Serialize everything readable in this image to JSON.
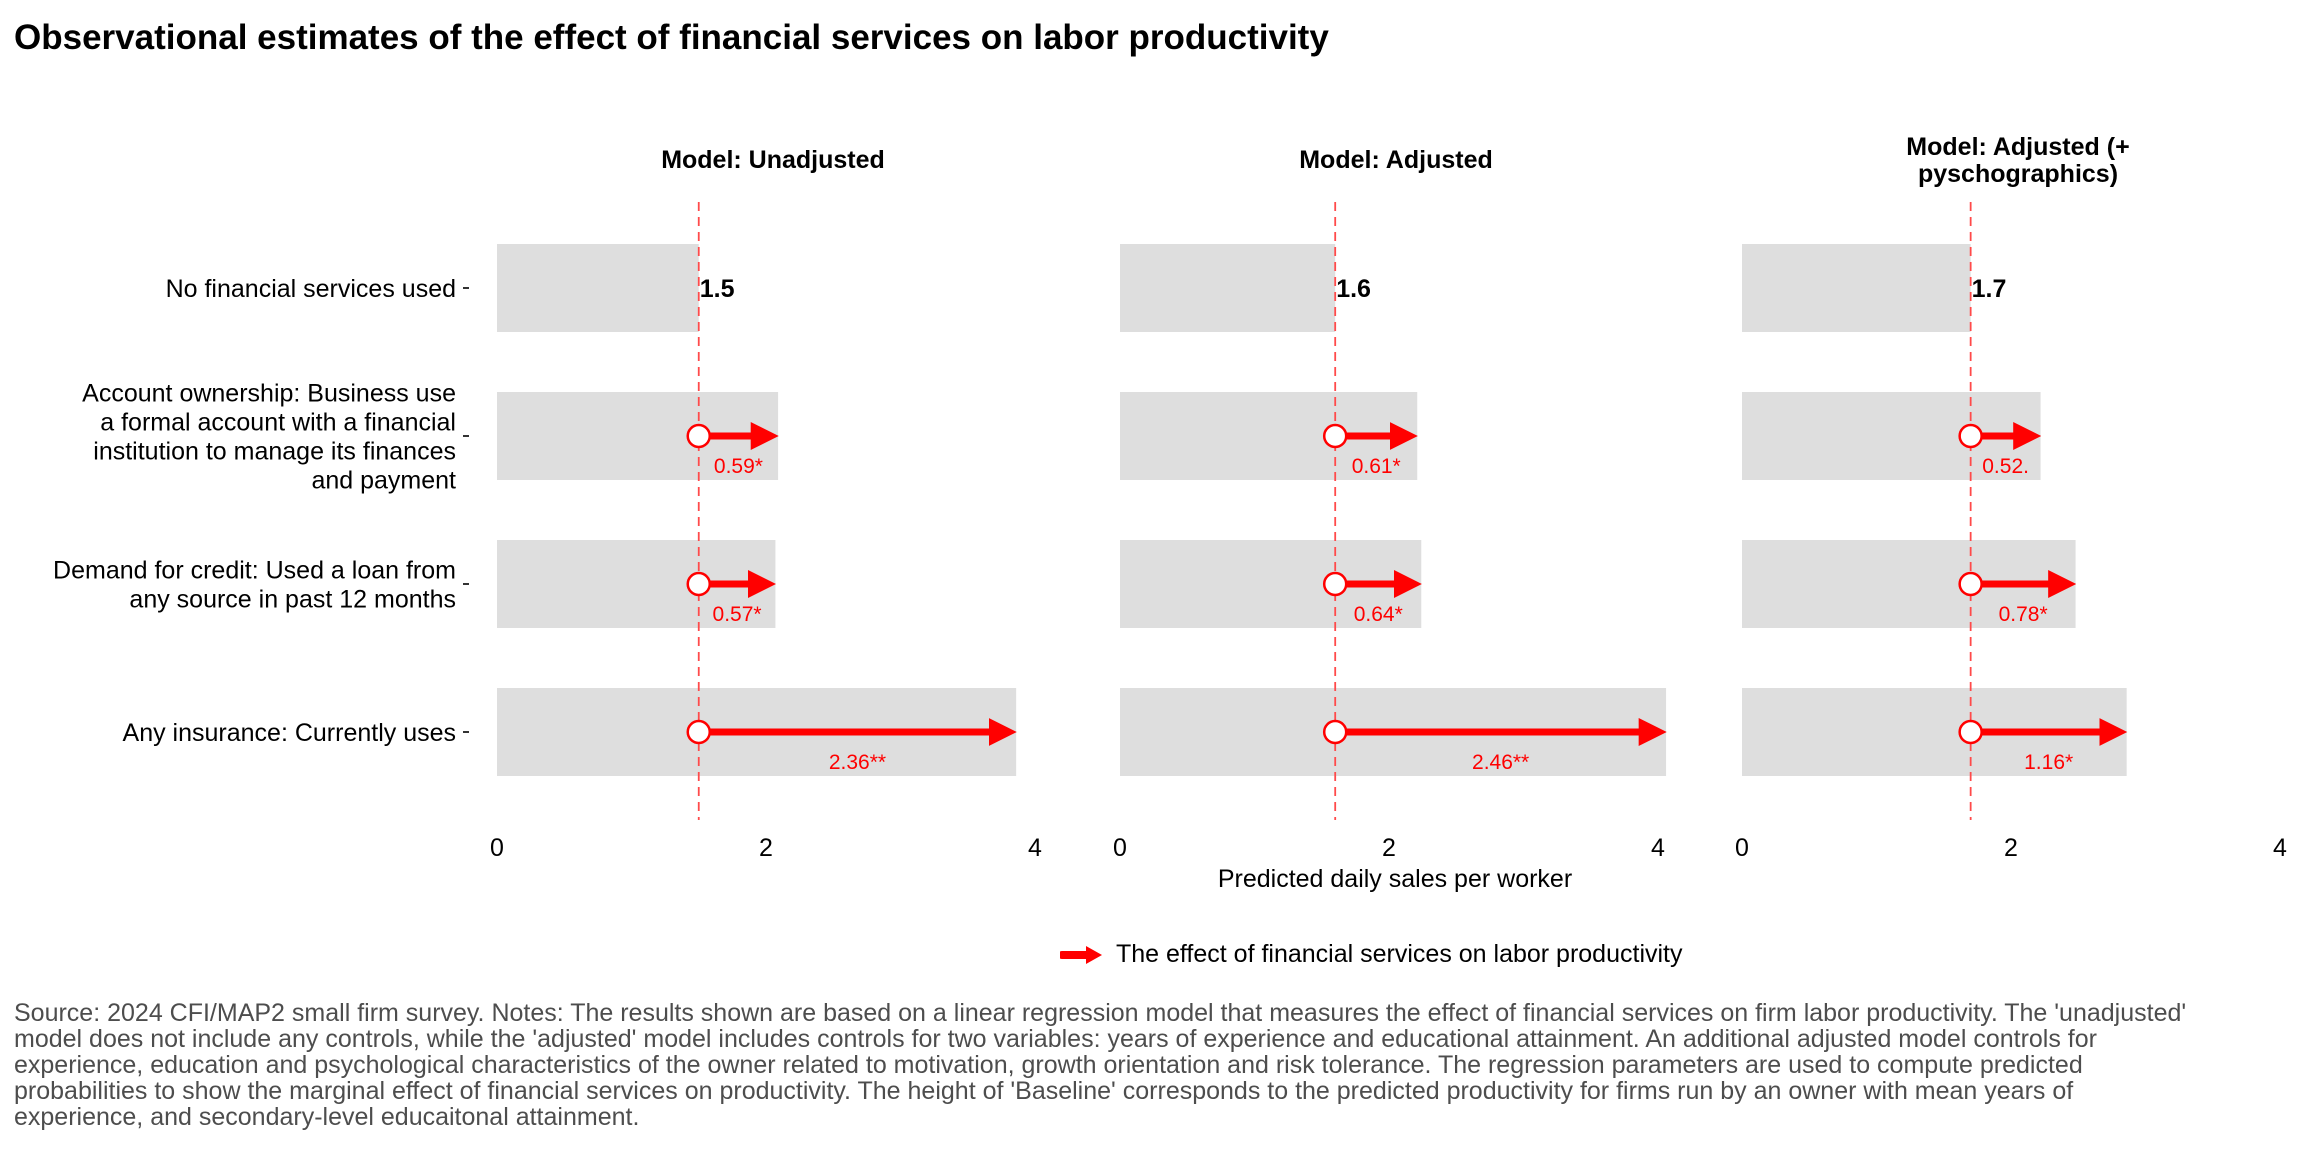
{
  "chart_data": {
    "type": "bar",
    "title": "Observational estimates of the effect of financial services on labor productivity",
    "xlabel": "Predicted daily sales per worker",
    "xlim": [
      0,
      4
    ],
    "xticks": [
      "0",
      "2",
      "4"
    ],
    "categories": [
      "No financial services used",
      "Account ownership: Business use\na formal account with a financial\ninstitution to manage its finances\nand payment",
      "Demand for credit: Used a loan from\nany source in past 12 months",
      "Any insurance: Currently uses"
    ],
    "legend": {
      "label": "The effect of financial services on labor productivity",
      "position": "bottom",
      "color": "#ff0000"
    },
    "bar_color": "#dedede",
    "series": [
      {
        "name": "Model: Unadjusted",
        "baseline": 1.5,
        "baseline_label": "1.5",
        "effects": [
          0.59,
          0.57,
          2.36
        ],
        "effect_labels": [
          "0.59*",
          "0.57*",
          "2.36**"
        ]
      },
      {
        "name": "Model: Adjusted",
        "baseline": 1.6,
        "baseline_label": "1.6",
        "effects": [
          0.61,
          0.64,
          2.46
        ],
        "effect_labels": [
          "0.61*",
          "0.64*",
          "2.46**"
        ]
      },
      {
        "name": "Model: Adjusted (+\npyschographics)",
        "baseline": 1.7,
        "baseline_label": "1.7",
        "effects": [
          0.52,
          0.78,
          1.16
        ],
        "effect_labels": [
          "0.52.",
          "0.78*",
          "1.16*"
        ]
      }
    ]
  },
  "note": "Source: 2024 CFI/MAP2 small firm survey. Notes: The results shown are based on a linear regression model that measures the effect of financial services on firm labor productivity. The 'unadjusted' model does not include any controls, while the 'adjusted' model includes controls for two variables: years of experience and educational attainment. An additional adjusted model controls for experience, education and psychological characteristics of the owner related to motivation, growth orientation and risk tolerance. The regression parameters are used to compute predicted probabilities to show the marginal effect of financial services on productivity. The height of 'Baseline' corresponds to the predicted productivity for firms run by an owner with mean years of experience, and secondary-level educaitonal attainment."
}
